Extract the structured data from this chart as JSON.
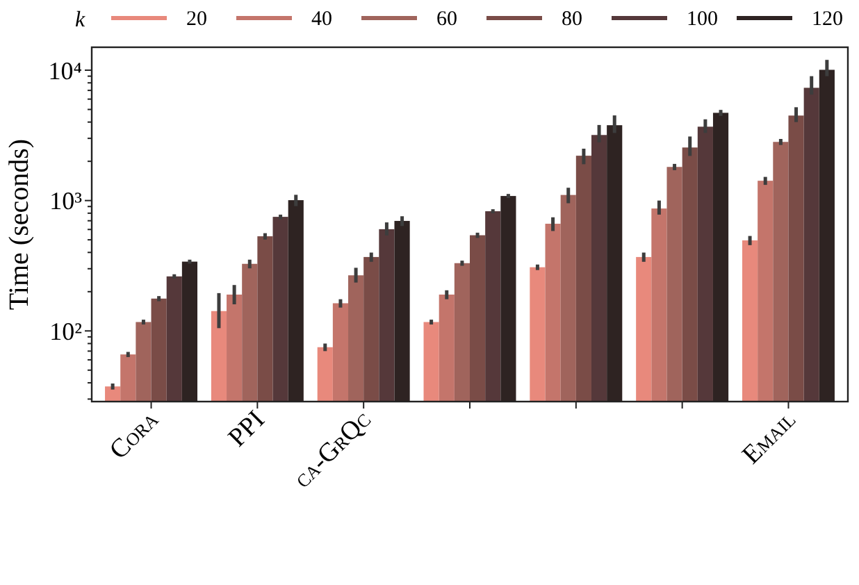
{
  "chart_data": {
    "type": "bar",
    "ylabel": "Time (seconds)",
    "legend_title": "k",
    "legend": "top",
    "log": true,
    "grid": false,
    "categories": [
      "Cora",
      "PPI",
      "ca-GrQc",
      null,
      null,
      null,
      "Email"
    ],
    "ylim": [
      28.7,
      15000
    ],
    "yticks": [
      {
        "value": 30,
        "label": null
      },
      {
        "value": 40,
        "label": null
      },
      {
        "value": 50,
        "label": null
      },
      {
        "value": 60,
        "label": null
      },
      {
        "value": 70,
        "label": null
      },
      {
        "value": 80,
        "label": null
      },
      {
        "value": 90,
        "label": null
      },
      {
        "value": 100,
        "label": "10²"
      },
      {
        "value": 200,
        "label": null
      },
      {
        "value": 300,
        "label": null
      },
      {
        "value": 400,
        "label": null
      },
      {
        "value": 500,
        "label": null
      },
      {
        "value": 600,
        "label": null
      },
      {
        "value": 700,
        "label": null
      },
      {
        "value": 800,
        "label": null
      },
      {
        "value": 900,
        "label": null
      },
      {
        "value": 1000,
        "label": "10³"
      },
      {
        "value": 2000,
        "label": null
      },
      {
        "value": 3000,
        "label": null
      },
      {
        "value": 4000,
        "label": null
      },
      {
        "value": 5000,
        "label": null
      },
      {
        "value": 6000,
        "label": null
      },
      {
        "value": 7000,
        "label": null
      },
      {
        "value": 8000,
        "label": null
      },
      {
        "value": 9000,
        "label": null
      },
      {
        "value": 10000,
        "label": "10⁴"
      }
    ],
    "series": [
      {
        "name": "20",
        "color": "#e8897c",
        "values": [
          37.5,
          142,
          75,
          117,
          308,
          369,
          495
        ],
        "errors": [
          2,
          [
            105,
            195
          ],
          5,
          5,
          15,
          30,
          40
        ]
      },
      {
        "name": "40",
        "color": "#c4756b",
        "values": [
          66,
          190,
          163,
          190,
          664,
          869,
          1419
        ],
        "errors": [
          3,
          [
            160,
            225
          ],
          12,
          15,
          80,
          [
            780,
            1000
          ],
          100
        ]
      },
      {
        "name": "60",
        "color": "#a0645c",
        "values": [
          117,
          327,
          267,
          331,
          1104,
          1811,
          2818
        ],
        "errors": [
          5,
          25,
          [
            235,
            305
          ],
          15,
          150,
          100,
          150
        ]
      },
      {
        "name": "80",
        "color": "#7a4c47",
        "values": [
          177,
          532,
          369,
          542,
          2208,
          2553,
          4488
        ],
        "errors": [
          8,
          30,
          30,
          25,
          [
            1900,
            2500
          ],
          [
            2200,
            3100
          ],
          [
            4000,
            5200
          ]
        ]
      },
      {
        "name": "100",
        "color": "#55383a",
        "values": [
          262,
          750,
          603,
          828,
          3184,
          3687,
          7328
        ],
        "errors": [
          10,
          30,
          [
            540,
            680
          ],
          30,
          [
            2800,
            3800
          ],
          [
            3300,
            4200
          ],
          [
            6500,
            9000
          ]
        ]
      },
      {
        "name": "120",
        "color": "#2e2322",
        "values": [
          340,
          1007,
          698,
          1084,
          3785,
          4710,
          10070
        ],
        "errors": [
          12,
          100,
          60,
          40,
          [
            3300,
            4500
          ],
          250,
          [
            9000,
            12000
          ]
        ]
      }
    ]
  }
}
